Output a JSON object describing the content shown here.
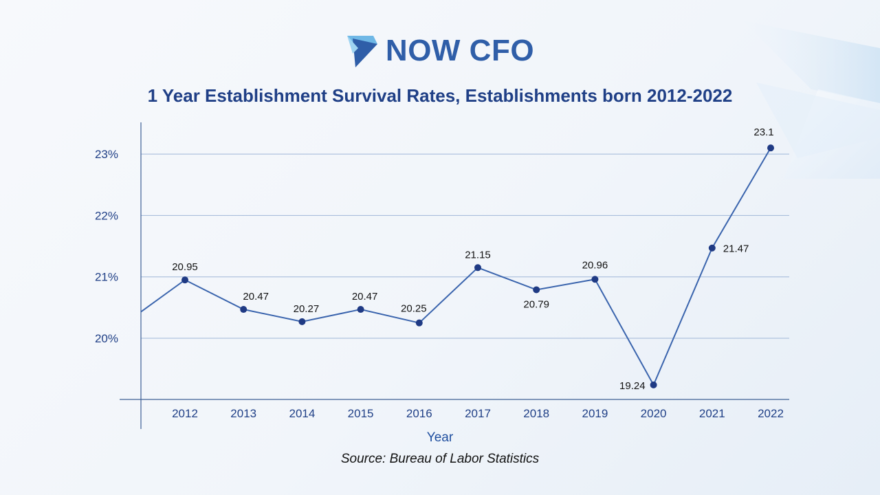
{
  "logo": {
    "text": "NOW CFO"
  },
  "chart_data": {
    "type": "line",
    "title": "1 Year Establishment Survival Rates, Establishments born 2012-2022",
    "xlabel": "Year",
    "ylabel": "",
    "categories": [
      "2012",
      "2013",
      "2014",
      "2015",
      "2016",
      "2017",
      "2018",
      "2019",
      "2020",
      "2021",
      "2022"
    ],
    "series": [
      {
        "values": [
          20.95,
          20.47,
          20.27,
          20.47,
          20.25,
          21.15,
          20.79,
          20.96,
          19.24,
          21.47,
          23.1
        ]
      }
    ],
    "data_labels": [
      "20.95",
      "20.47",
      "20.27",
      "20.47",
      "20.25",
      "21.15",
      "20.79",
      "20.96",
      "19.24",
      "21.47",
      "23.1"
    ],
    "leading_value": 20.43,
    "y_ticks": [
      20,
      21,
      22,
      23
    ],
    "y_tick_labels": [
      "20%",
      "21%",
      "22%",
      "23%"
    ],
    "ylim": [
      19,
      23.5
    ],
    "grid": true,
    "legend": "none",
    "colors": {
      "line": "#3a64ad",
      "marker": "#1f3a84",
      "axis_text": "#1f3f86"
    }
  },
  "source": "Source: Bureau of Labor Statistics"
}
